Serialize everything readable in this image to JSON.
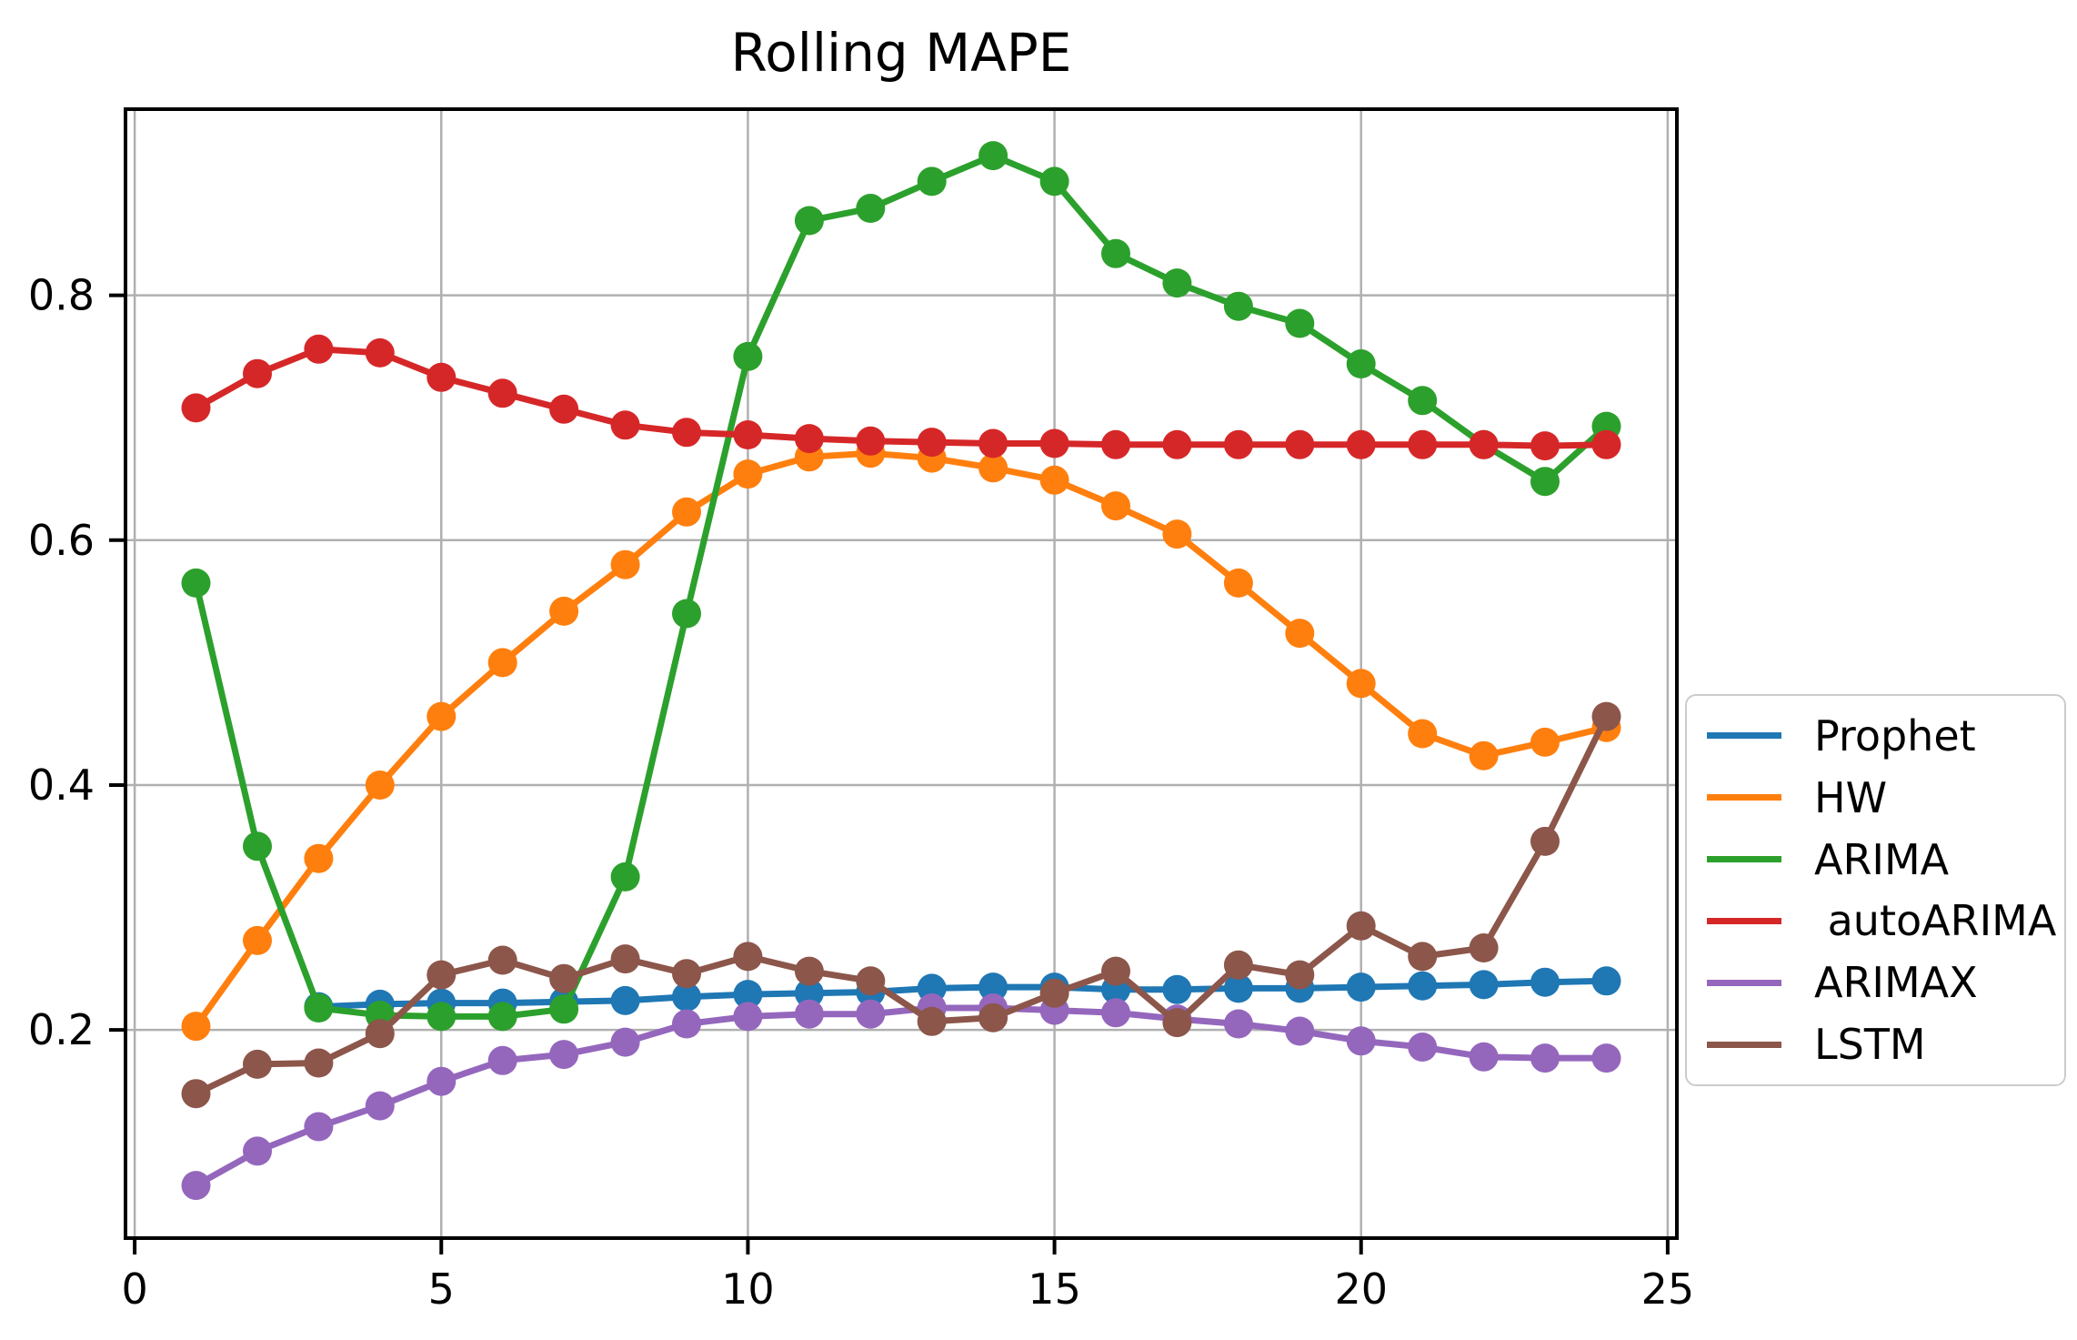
{
  "chart_data": {
    "type": "line",
    "title": "Rolling MAPE",
    "xlabel": "",
    "ylabel": "",
    "grid": true,
    "legend_position": "center right outside",
    "marker": "o",
    "xlim": [
      -0.15,
      25.15
    ],
    "ylim": [
      0.03,
      0.952
    ],
    "xticks": [
      0,
      5,
      10,
      15,
      20,
      25
    ],
    "xtick_labels": [
      "0",
      "5",
      "10",
      "15",
      "20",
      "25"
    ],
    "yticks": [
      0.2,
      0.4,
      0.6,
      0.8
    ],
    "ytick_labels": [
      "0.2",
      "0.4",
      "0.6",
      "0.8"
    ],
    "x": [
      1,
      2,
      3,
      4,
      5,
      6,
      7,
      8,
      9,
      10,
      11,
      12,
      13,
      14,
      15,
      16,
      17,
      18,
      19,
      20,
      21,
      22,
      23,
      24
    ],
    "series": [
      {
        "name": "Prophet",
        "color": "#1f77b4",
        "values": [
          null,
          null,
          0.219,
          0.221,
          0.222,
          0.222,
          0.223,
          0.224,
          0.227,
          0.229,
          0.23,
          0.231,
          0.234,
          0.235,
          0.235,
          0.233,
          0.233,
          0.234,
          0.234,
          0.235,
          0.236,
          0.237,
          0.239,
          0.24
        ]
      },
      {
        "name": "HW",
        "color": "#ff7f0e",
        "values": [
          0.203,
          0.273,
          0.34,
          0.4,
          0.456,
          0.5,
          0.542,
          0.58,
          0.623,
          0.654,
          0.668,
          0.671,
          0.667,
          0.659,
          0.649,
          0.628,
          0.605,
          0.565,
          0.524,
          0.483,
          0.442,
          0.424,
          0.435,
          0.447
        ]
      },
      {
        "name": "ARIMA",
        "color": "#2ca02c",
        "values": [
          0.565,
          0.35,
          0.218,
          0.212,
          0.211,
          0.211,
          0.217,
          0.325,
          0.54,
          0.75,
          0.861,
          0.871,
          0.893,
          0.914,
          0.893,
          0.834,
          0.81,
          0.791,
          0.777,
          0.744,
          0.714,
          0.678,
          0.648,
          0.693
        ]
      },
      {
        "name": " autoARIMA",
        "color": "#d62728",
        "values": [
          0.708,
          0.736,
          0.756,
          0.753,
          0.733,
          0.72,
          0.707,
          0.694,
          0.688,
          0.686,
          0.683,
          0.681,
          0.68,
          0.679,
          0.679,
          0.678,
          0.678,
          0.678,
          0.678,
          0.678,
          0.678,
          0.678,
          0.677,
          0.678
        ]
      },
      {
        "name": "ARIMAX",
        "color": "#9467bd",
        "values": [
          0.073,
          0.101,
          0.121,
          0.138,
          0.158,
          0.175,
          0.18,
          0.19,
          0.205,
          0.211,
          0.213,
          0.213,
          0.218,
          0.218,
          0.216,
          0.214,
          0.209,
          0.205,
          0.199,
          0.191,
          0.186,
          0.178,
          0.177,
          0.177
        ]
      },
      {
        "name": "LSTM",
        "color": "#8c564b",
        "values": [
          0.148,
          0.172,
          0.173,
          0.197,
          0.245,
          0.257,
          0.242,
          0.258,
          0.246,
          0.26,
          0.248,
          0.24,
          0.207,
          0.21,
          0.23,
          0.248,
          0.206,
          0.253,
          0.245,
          0.285,
          0.26,
          0.267,
          0.354,
          0.456
        ]
      }
    ],
    "colors": {
      "background": "#ffffff",
      "grid": "#b0b0b0",
      "spine": "#000000",
      "text": "#000000",
      "legend_border": "#cccccc"
    }
  }
}
